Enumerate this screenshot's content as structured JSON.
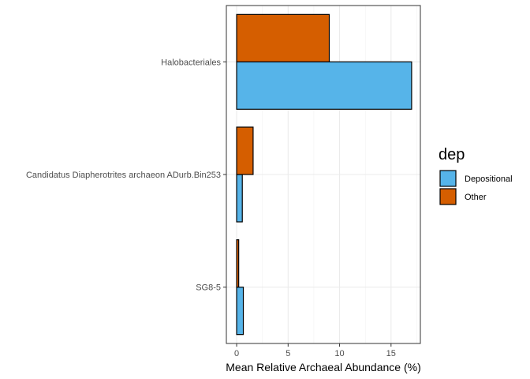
{
  "chart_data": {
    "type": "bar",
    "orientation": "horizontal",
    "categories": [
      "Halobacteriales",
      "Candidatus Diapherotrites archaeon ADurb.Bin253",
      "SG8-5"
    ],
    "series": [
      {
        "name": "Depositional",
        "color": "#56B4E9",
        "values": [
          17.0,
          0.55,
          0.65
        ]
      },
      {
        "name": "Other",
        "color": "#D55E00",
        "values": [
          9.0,
          1.6,
          0.2
        ]
      }
    ],
    "xlabel": "Mean Relative Archaeal Abundance (%)",
    "ylabel": "",
    "xlim": [
      -1.0,
      17.85
    ],
    "xticks": [
      0,
      5,
      10,
      15
    ],
    "grid": true,
    "legend": {
      "title": "dep",
      "position": "right"
    }
  }
}
